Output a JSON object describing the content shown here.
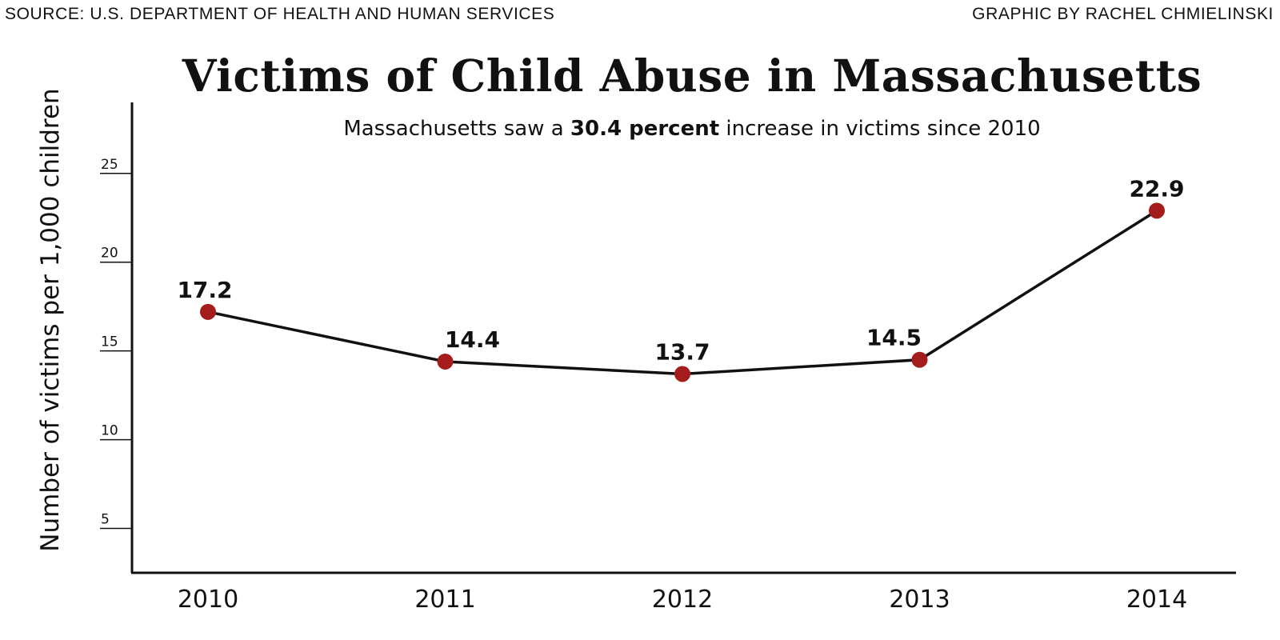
{
  "header": {
    "source": "SOURCE: U.S. DEPARTMENT OF HEALTH AND HUMAN SERVICES",
    "credit": "GRAPHIC BY RACHEL CHMIELINSKI"
  },
  "chart_data": {
    "type": "line",
    "title": "Victims of Child Abuse in Massachusetts",
    "subtitle": {
      "before": "Massachusetts saw a ",
      "highlight": "30.4 percent",
      "after": " increase in victims since 2010"
    },
    "xlabel": "",
    "ylabel": "Number of victims per 1,000 children",
    "categories": [
      "2010",
      "2011",
      "2012",
      "2013",
      "2014"
    ],
    "series": [
      {
        "values": [
          17.2,
          14.4,
          13.7,
          14.5,
          22.9
        ],
        "labels": [
          "17.2",
          "14.4",
          "13.7",
          "14.5",
          "22.9"
        ]
      }
    ],
    "yticks": [
      5,
      10,
      15,
      20,
      25
    ],
    "ylim": [
      2.5,
      29
    ],
    "grid": false,
    "legend": "none",
    "line_color": "#111111",
    "marker_color": "#a51c1c"
  }
}
